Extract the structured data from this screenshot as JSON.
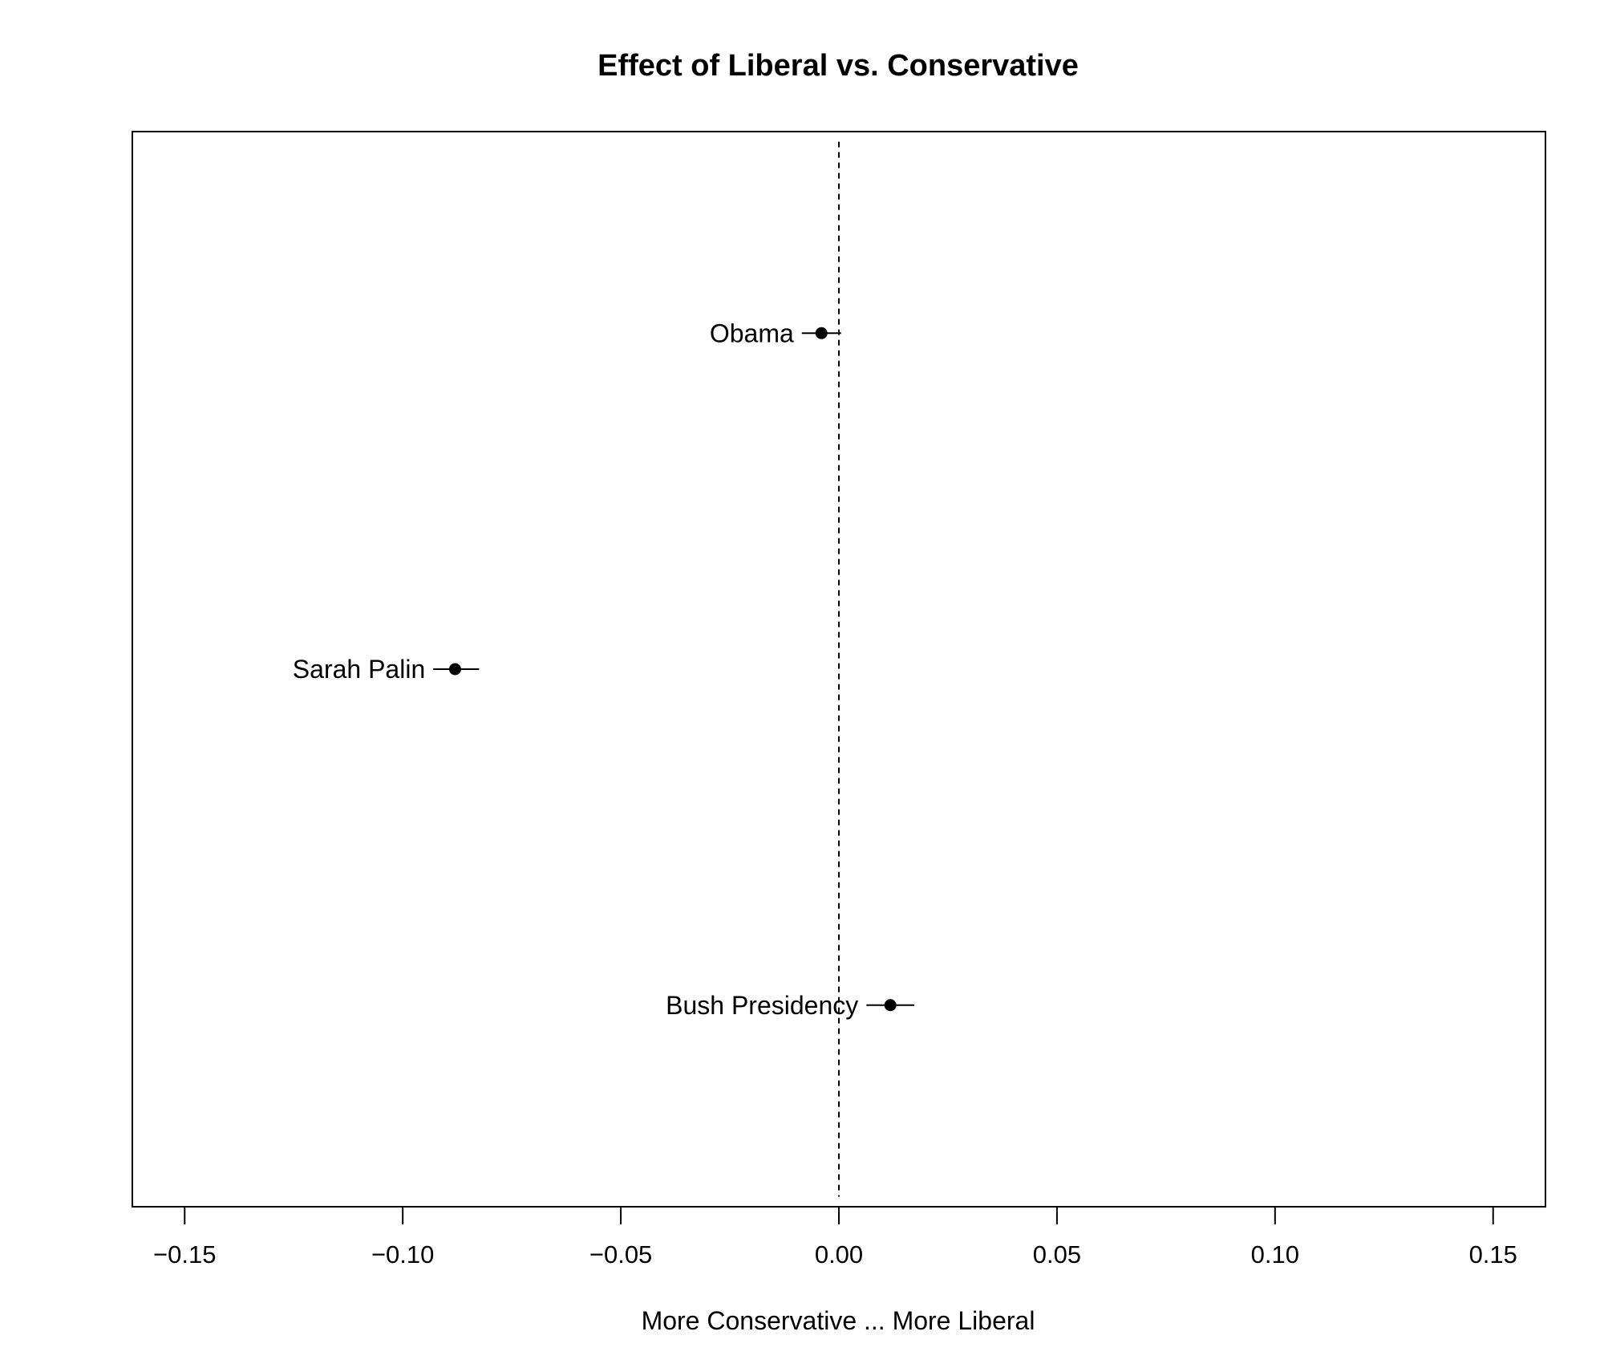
{
  "chart_data": {
    "type": "scatter",
    "title": "Effect of Liberal vs. Conservative",
    "xlabel": "More Conservative ... More Liberal",
    "ylabel": "",
    "xlim": [
      -0.162,
      0.162
    ],
    "ylim": [
      0.4,
      3.6
    ],
    "x_ticks": [
      -0.15,
      -0.1,
      -0.05,
      0.0,
      0.05,
      0.1,
      0.15
    ],
    "x_tick_labels": [
      "−0.15",
      "−0.10",
      "−0.05",
      "0.00",
      "0.05",
      "0.10",
      "0.15"
    ],
    "reference_line": {
      "x": 0,
      "style": "dashed"
    },
    "grid": false,
    "points": [
      {
        "label": "Obama",
        "estimate": -0.004,
        "ci_low": -0.0085,
        "ci_high": 0.0005
      },
      {
        "label": "Sarah Palin",
        "estimate": -0.088,
        "ci_low": -0.093,
        "ci_high": -0.0825
      },
      {
        "label": "Bush Presidency",
        "estimate": 0.0118,
        "ci_low": 0.0063,
        "ci_high": 0.0173
      }
    ]
  }
}
